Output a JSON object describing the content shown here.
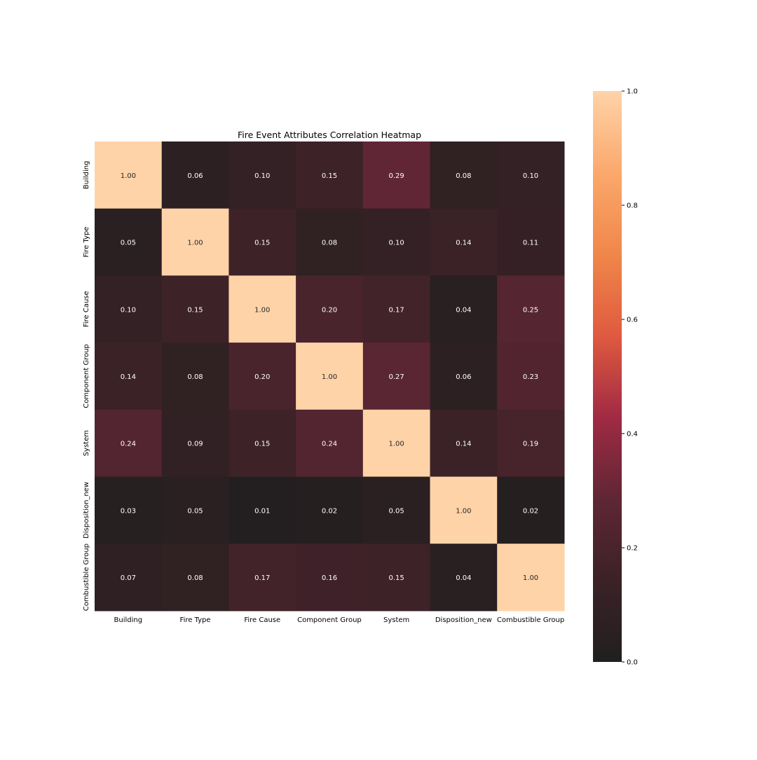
{
  "chart_data": {
    "type": "heatmap",
    "title": "Fire Event Attributes Correlation Heatmap",
    "row_labels": [
      "Building",
      "Fire Type",
      "Fire Cause",
      "Component Group",
      "System",
      "Disposition_new",
      "Combustible Group"
    ],
    "col_labels": [
      "Building",
      "Fire Type",
      "Fire Cause",
      "Component Group",
      "System",
      "Disposition_new",
      "Combustible Group"
    ],
    "values": [
      [
        1.0,
        0.06,
        0.1,
        0.15,
        0.29,
        0.08,
        0.1
      ],
      [
        0.05,
        1.0,
        0.15,
        0.08,
        0.1,
        0.14,
        0.11
      ],
      [
        0.1,
        0.15,
        1.0,
        0.2,
        0.17,
        0.04,
        0.25
      ],
      [
        0.14,
        0.08,
        0.2,
        1.0,
        0.27,
        0.06,
        0.23
      ],
      [
        0.24,
        0.09,
        0.15,
        0.24,
        1.0,
        0.14,
        0.19
      ],
      [
        0.03,
        0.05,
        0.01,
        0.02,
        0.05,
        1.0,
        0.02
      ],
      [
        0.07,
        0.08,
        0.17,
        0.16,
        0.15,
        0.04,
        1.0
      ]
    ],
    "annotation_format": "0.00",
    "colorbar": {
      "range": [
        0.0,
        1.0
      ],
      "ticks": [
        0.0,
        0.2,
        0.4,
        0.6,
        0.8,
        1.0
      ],
      "tick_labels": [
        "0.0",
        "0.2",
        "0.4",
        "0.6",
        "0.8",
        "1.0"
      ],
      "colormap_stops": [
        "#211f1f",
        "#3b2227",
        "#5f2635",
        "#a12a44",
        "#df5a3f",
        "#f0874a",
        "#fba86c",
        "#ffd3a8"
      ]
    }
  }
}
